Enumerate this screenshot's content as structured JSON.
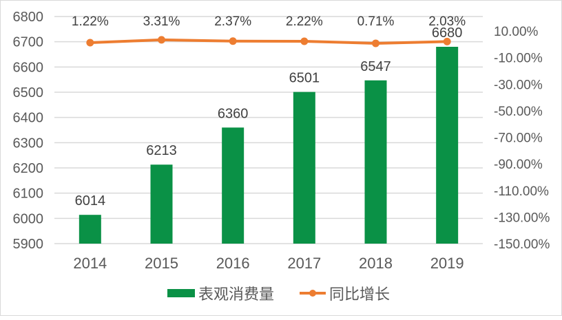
{
  "chart_data": {
    "type": "bar",
    "combo": "bar+line (dual axis)",
    "title": "",
    "categories": [
      "2014",
      "2015",
      "2016",
      "2017",
      "2018",
      "2019"
    ],
    "series": [
      {
        "name": "表观消费量",
        "type": "bar",
        "axis": "left",
        "color": "#0A9146",
        "values": [
          6014,
          6213,
          6360,
          6501,
          6547,
          6680
        ],
        "labels": [
          "6014",
          "6213",
          "6360",
          "6501",
          "6547",
          "6680"
        ]
      },
      {
        "name": "同比增长",
        "type": "line",
        "axis": "right",
        "color": "#ED7D31",
        "values": [
          1.22,
          3.31,
          2.37,
          2.22,
          0.71,
          2.03
        ],
        "labels": [
          "1.22%",
          "3.31%",
          "2.37%",
          "2.22%",
          "0.71%",
          "2.03%"
        ]
      }
    ],
    "left_axis": {
      "ylim": [
        5900,
        6800
      ],
      "ticks": [
        "6800",
        "6700",
        "6600",
        "6500",
        "6400",
        "6300",
        "6200",
        "6100",
        "6000",
        "5900"
      ]
    },
    "right_axis": {
      "ylim": [
        -150,
        10
      ],
      "ticks": [
        "10.00%",
        "-10.00%",
        "-30.00%",
        "-50.00%",
        "-70.00%",
        "-90.00%",
        "-110.00%",
        "-130.00%",
        "-150.00%"
      ]
    },
    "xlabel": "",
    "ylabel": "",
    "grid": true,
    "legend_position": "bottom"
  },
  "legend": {
    "bar_label": "表观消费量",
    "line_label": "同比增长"
  }
}
